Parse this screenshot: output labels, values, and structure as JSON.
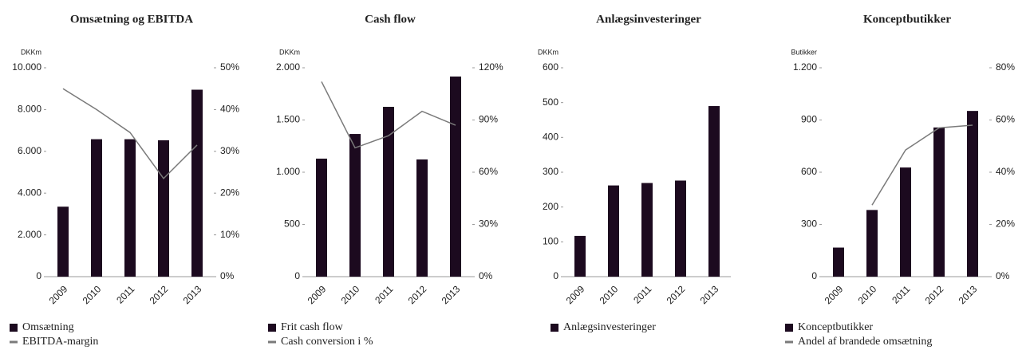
{
  "chart_data": [
    {
      "type": "bar_line",
      "title": "Omsætning og EBITDA",
      "y_label": "DKKm",
      "categories": [
        "2009",
        "2010",
        "2011",
        "2012",
        "2013"
      ],
      "series": [
        {
          "name": "Omsætning",
          "color": "#1c0a1f",
          "values": [
            3350,
            6580,
            6580,
            6530,
            8950
          ]
        },
        {
          "name": "EBITDA-margin",
          "color": "#7a7a7a",
          "axis": "y2",
          "values": [
            45,
            40,
            34.5,
            23.5,
            31.5
          ]
        }
      ],
      "ylim": [
        0,
        10000
      ],
      "yticks": [
        0,
        {
          "value": 2000,
          "label": "2.000"
        },
        {
          "value": 4000,
          "label": "4.000"
        },
        {
          "value": 6000,
          "label": "6.000"
        },
        {
          "value": 8000,
          "label": "8.000"
        },
        {
          "value": 10000,
          "label": "10.000"
        }
      ],
      "y2lim": [
        0,
        50
      ],
      "y2ticks": [
        {
          "value": 0,
          "label": "0%"
        },
        {
          "value": 10,
          "label": "10%"
        },
        {
          "value": 20,
          "label": "20%"
        },
        {
          "value": 30,
          "label": "30%"
        },
        {
          "value": 40,
          "label": "40%"
        },
        {
          "value": 50,
          "label": "50%"
        }
      ]
    },
    {
      "type": "bar_line",
      "title": "Cash flow",
      "y_label": "DKKm",
      "categories": [
        "2009",
        "2010",
        "2011",
        "2012",
        "2013"
      ],
      "series": [
        {
          "name": "Frit cash flow",
          "color": "#1c0a1f",
          "values": [
            1130,
            1366,
            1626,
            1122,
            1916
          ]
        },
        {
          "name": "Cash conversion i %",
          "color": "#7a7a7a",
          "axis": "y2",
          "values": [
            112,
            74,
            81,
            95,
            87
          ]
        }
      ],
      "ylim": [
        0,
        2000
      ],
      "yticks": [
        0,
        500,
        {
          "value": 1000,
          "label": "1.000"
        },
        {
          "value": 1500,
          "label": "1.500"
        },
        {
          "value": 2000,
          "label": "2.000"
        }
      ],
      "y2lim": [
        0,
        120
      ],
      "y2ticks": [
        {
          "value": 0,
          "label": "0%"
        },
        {
          "value": 30,
          "label": "30%"
        },
        {
          "value": 60,
          "label": "60%"
        },
        {
          "value": 90,
          "label": "90%"
        },
        {
          "value": 120,
          "label": "120%"
        }
      ]
    },
    {
      "type": "bar",
      "title": "Anlægsinvesteringer",
      "y_label": "DKKm",
      "categories": [
        "2009",
        "2010",
        "2011",
        "2012",
        "2013"
      ],
      "series": [
        {
          "name": "Anlægsinvesteringer",
          "color": "#1c0a1f",
          "values": [
            117,
            262,
            269,
            276,
            490
          ]
        }
      ],
      "ylim": [
        0,
        600
      ],
      "yticks": [
        0,
        100,
        200,
        300,
        400,
        500,
        600
      ]
    },
    {
      "type": "bar_line",
      "title": "Konceptbutikker",
      "y_label": "Butikker",
      "categories": [
        "2009",
        "2010",
        "2011",
        "2012",
        "2013"
      ],
      "series": [
        {
          "name": "Konceptbutikker",
          "color": "#1c0a1f",
          "values": [
            167,
            383,
            627,
            857,
            952
          ]
        },
        {
          "name": "Andel af brandede omsætning",
          "color": "#7a7a7a",
          "axis": "y2",
          "values": [
            null,
            27.4,
            48.5,
            57,
            58
          ]
        }
      ],
      "ylim": [
        0,
        1200
      ],
      "yticks": [
        0,
        300,
        600,
        900,
        {
          "value": 1200,
          "label": "1.200"
        }
      ],
      "y2lim": [
        0,
        80
      ],
      "y2ticks": [
        {
          "value": 0,
          "label": "0%"
        },
        {
          "value": 20,
          "label": "20%"
        },
        {
          "value": 40,
          "label": "40%"
        },
        {
          "value": 60,
          "label": "60%"
        },
        {
          "value": 80,
          "label": "80%"
        }
      ]
    }
  ]
}
